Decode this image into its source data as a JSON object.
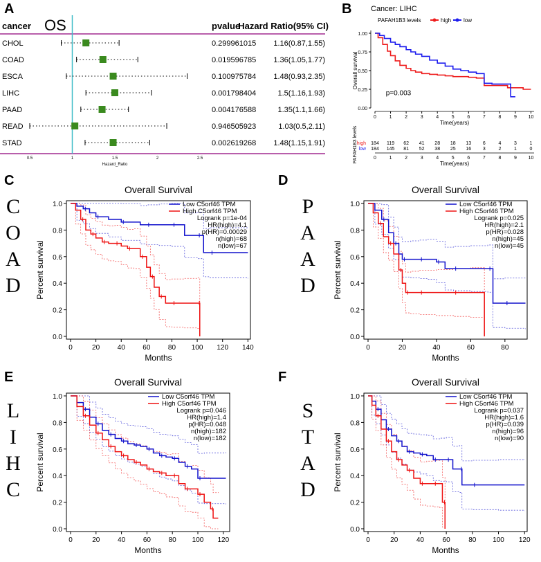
{
  "panel_labels": {
    "a": "A",
    "b": "B",
    "c": "C",
    "d": "D",
    "e": "E",
    "f": "F"
  },
  "chart_data": [
    {
      "type": "forest",
      "panel": "A",
      "title": "OS",
      "columns": {
        "cancer": "cancer",
        "pvalue": "pvalue",
        "hr": "Hazard Ratio(95% CI)"
      },
      "rows": [
        {
          "cancer": "CHOL",
          "pvalue": "0.299961015",
          "hr_text": "1.16(0.87,1.55)",
          "hr": 1.16,
          "low": 0.87,
          "high": 1.55
        },
        {
          "cancer": "COAD",
          "pvalue": "0.019596785",
          "hr_text": "1.36(1.05,1.77)",
          "hr": 1.36,
          "low": 1.05,
          "high": 1.77
        },
        {
          "cancer": "ESCA",
          "pvalue": "0.100975784",
          "hr_text": "1.48(0.93,2.35)",
          "hr": 1.48,
          "low": 0.93,
          "high": 2.35
        },
        {
          "cancer": "LIHC",
          "pvalue": "0.001798404",
          "hr_text": "1.5(1.16,1.93)",
          "hr": 1.5,
          "low": 1.16,
          "high": 1.93
        },
        {
          "cancer": "PAAD",
          "pvalue": "0.004176588",
          "hr_text": "1.35(1.1,1.66)",
          "hr": 1.35,
          "low": 1.1,
          "high": 1.66
        },
        {
          "cancer": "READ",
          "pvalue": "0.946505923",
          "hr_text": "1.03(0.5,2.11)",
          "hr": 1.03,
          "low": 0.5,
          "high": 2.11
        },
        {
          "cancer": "STAD",
          "pvalue": "0.002619268",
          "hr_text": "1.48(1.15,1.91)",
          "hr": 1.48,
          "low": 1.15,
          "high": 1.91
        }
      ],
      "xticks": [
        0.5,
        1,
        1.5,
        2,
        2.5
      ],
      "xtick_labels": [
        "0.5",
        "1",
        "1.5",
        "2",
        "2.5"
      ],
      "xlim": [
        0.5,
        2.5
      ],
      "reference_line": 1,
      "xlabel": "Hazard_Ratio",
      "colors": {
        "box": "#3a8a1e",
        "ref": "#40bcc8",
        "rule": "#a0298f"
      }
    },
    {
      "type": "line",
      "panel": "B",
      "title": "Cancer: LIHC",
      "legend_title": "PAFAH1B3 levels",
      "series": [
        {
          "name": "high",
          "color": "#ee1c1c",
          "x": [
            0,
            0.2,
            0.5,
            0.8,
            1,
            1.3,
            1.6,
            2,
            2.3,
            2.6,
            3,
            3.5,
            4,
            4.5,
            5,
            5.5,
            6,
            6.5,
            7,
            7.5,
            8,
            8.5,
            9,
            9.5,
            10
          ],
          "y": [
            1,
            0.94,
            0.85,
            0.76,
            0.7,
            0.63,
            0.57,
            0.53,
            0.5,
            0.48,
            0.46,
            0.45,
            0.44,
            0.43,
            0.42,
            0.42,
            0.41,
            0.4,
            0.3,
            0.3,
            0.3,
            0.27,
            0.27,
            0.25,
            0.25
          ]
        },
        {
          "name": "low",
          "color": "#1c1cee",
          "x": [
            0,
            0.3,
            0.6,
            1,
            1.3,
            1.6,
            2,
            2.3,
            2.6,
            3,
            3.5,
            4,
            4.5,
            5,
            5.5,
            6,
            6.5,
            7,
            7.5,
            8,
            8.5,
            8.7,
            9
          ],
          "y": [
            1,
            0.97,
            0.93,
            0.88,
            0.85,
            0.82,
            0.78,
            0.75,
            0.72,
            0.69,
            0.64,
            0.6,
            0.56,
            0.52,
            0.5,
            0.48,
            0.46,
            0.33,
            0.32,
            0.32,
            0.32,
            0.15,
            0.15
          ]
        }
      ],
      "xticks": [
        0,
        1,
        2,
        3,
        4,
        5,
        6,
        7,
        8,
        9,
        10
      ],
      "xtick_labels": [
        "0",
        "1",
        "2",
        "3",
        "4",
        "5",
        "6",
        "7",
        "8",
        "9",
        "10"
      ],
      "yticks": [
        0,
        0.25,
        0.5,
        0.75,
        1
      ],
      "ytick_labels": [
        "0.00",
        "0.25",
        "0.50",
        "0.75",
        "1.00"
      ],
      "xlabel": "Time(years)",
      "ylabel": "Overall survival",
      "annotation": "p=0.003",
      "xlim": [
        0,
        10.2
      ],
      "ylim": [
        0,
        1
      ],
      "risk_table": {
        "ylabel": "PAFAH1B3 levels",
        "xlabel": "Time(years)",
        "rows": [
          {
            "name": "high",
            "color": "#ee1c1c",
            "values": [
              "184",
              "119",
              "62",
              "41",
              "28",
              "18",
              "13",
              "6",
              "4",
              "3",
              "1"
            ]
          },
          {
            "name": "low",
            "color": "#1c1cee",
            "values": [
              "184",
              "145",
              "81",
              "52",
              "38",
              "25",
              "16",
              "3",
              "2",
              "1",
              "0"
            ]
          }
        ]
      }
    },
    {
      "type": "line",
      "panel": "C",
      "cancer": "COAD",
      "title": "Overall Survival",
      "xlabel": "Months",
      "ylabel": "Percent survival",
      "xticks": [
        0,
        20,
        40,
        60,
        80,
        100,
        120,
        140
      ],
      "xtick_labels": [
        "0",
        "20",
        "40",
        "60",
        "80",
        "100",
        "120",
        "140"
      ],
      "yticks": [
        0,
        0.2,
        0.4,
        0.6,
        0.8,
        1
      ],
      "ytick_labels": [
        "0.0",
        "0.2",
        "0.4",
        "0.6",
        "0.8",
        "1.0"
      ],
      "xlim": [
        0,
        142
      ],
      "ylim": [
        0,
        1
      ],
      "legend": [
        "Low C5orf46 TPM",
        "High C5orf46 TPM"
      ],
      "stats": [
        "Logrank p=1e-04",
        "HR(high)=4.1",
        "p(HR)=0.00029",
        "n(high)=68",
        "n(low)=67"
      ],
      "series": [
        {
          "name": "Low C5orf46 TPM",
          "color": "#1111cc",
          "x": [
            0,
            5,
            10,
            15,
            20,
            30,
            40,
            55,
            60,
            70,
            80,
            90,
            100,
            105,
            110,
            140
          ],
          "y": [
            1,
            0.98,
            0.96,
            0.93,
            0.9,
            0.88,
            0.86,
            0.84,
            0.84,
            0.84,
            0.84,
            0.76,
            0.76,
            0.63,
            0.63,
            0.63
          ]
        },
        {
          "name": "High C5orf46 TPM",
          "color": "#ee1111",
          "x": [
            0,
            4,
            8,
            12,
            16,
            20,
            25,
            30,
            35,
            40,
            45,
            50,
            55,
            60,
            63,
            66,
            70,
            75,
            80,
            90,
            100,
            102
          ],
          "y": [
            1,
            0.95,
            0.88,
            0.8,
            0.77,
            0.74,
            0.71,
            0.7,
            0.7,
            0.68,
            0.66,
            0.66,
            0.6,
            0.52,
            0.45,
            0.37,
            0.3,
            0.25,
            0.25,
            0.25,
            0.25,
            0
          ]
        }
      ]
    },
    {
      "type": "line",
      "panel": "D",
      "cancer": "PAAD",
      "title": "Overall Survival",
      "xlabel": "Months",
      "ylabel": "Percent survival",
      "xticks": [
        0,
        20,
        40,
        60,
        80
      ],
      "xtick_labels": [
        "0",
        "20",
        "40",
        "60",
        "80"
      ],
      "yticks": [
        0,
        0.2,
        0.4,
        0.6,
        0.8,
        1
      ],
      "ytick_labels": [
        "0.0",
        "0.2",
        "0.4",
        "0.6",
        "0.8",
        "1.0"
      ],
      "xlim": [
        0,
        93
      ],
      "ylim": [
        0,
        1
      ],
      "legend": [
        "Low C5orf46 TPM",
        "High C5orf46 TPM"
      ],
      "stats": [
        "Logrank p=0.025",
        "HR(high)=2.1",
        "p(HR)=0.028",
        "n(high)=45",
        "n(low)=45"
      ],
      "series": [
        {
          "name": "Low C5orf46 TPM",
          "color": "#1111cc",
          "x": [
            0,
            4,
            8,
            12,
            15,
            18,
            20,
            25,
            30,
            35,
            40,
            45,
            50,
            60,
            70,
            73,
            80,
            92
          ],
          "y": [
            1,
            0.95,
            0.88,
            0.78,
            0.7,
            0.62,
            0.58,
            0.58,
            0.58,
            0.58,
            0.56,
            0.51,
            0.51,
            0.51,
            0.51,
            0.25,
            0.25,
            0.25
          ]
        },
        {
          "name": "High C5orf46 TPM",
          "color": "#ee1111",
          "x": [
            0,
            3,
            6,
            9,
            12,
            15,
            18,
            20,
            22,
            25,
            30,
            40,
            50,
            60,
            68
          ],
          "y": [
            1,
            0.93,
            0.85,
            0.75,
            0.7,
            0.62,
            0.5,
            0.4,
            0.33,
            0.33,
            0.33,
            0.33,
            0.33,
            0.33,
            0
          ]
        }
      ]
    },
    {
      "type": "line",
      "panel": "E",
      "cancer": "LIHC",
      "title": "Overall Survival",
      "xlabel": "Months",
      "ylabel": "Percent survival",
      "xticks": [
        0,
        20,
        40,
        60,
        80,
        100,
        120
      ],
      "xtick_labels": [
        "0",
        "20",
        "40",
        "60",
        "80",
        "100",
        "120"
      ],
      "yticks": [
        0,
        0.2,
        0.4,
        0.6,
        0.8,
        1
      ],
      "ytick_labels": [
        "0.0",
        "0.2",
        "0.4",
        "0.6",
        "0.8",
        "1.0"
      ],
      "xlim": [
        0,
        125
      ],
      "ylim": [
        0,
        1
      ],
      "legend": [
        "Low C5orf46 TPM",
        "High C5orf46 TPM"
      ],
      "stats": [
        "Logrank p=0.046",
        "HR(high)=1.4",
        "p(HR)=0.048",
        "n(high)=182",
        "n(low)=182"
      ],
      "series": [
        {
          "name": "Low C5orf46 TPM",
          "color": "#1111cc",
          "x": [
            0,
            5,
            10,
            15,
            20,
            25,
            30,
            35,
            40,
            45,
            50,
            55,
            60,
            65,
            70,
            75,
            80,
            85,
            90,
            95,
            100,
            105,
            122
          ],
          "y": [
            1,
            0.95,
            0.9,
            0.84,
            0.79,
            0.74,
            0.71,
            0.68,
            0.66,
            0.64,
            0.63,
            0.62,
            0.6,
            0.57,
            0.55,
            0.54,
            0.53,
            0.5,
            0.47,
            0.45,
            0.38,
            0.38,
            0.38
          ]
        },
        {
          "name": "High C5orf46 TPM",
          "color": "#ee1111",
          "x": [
            0,
            5,
            10,
            15,
            20,
            25,
            30,
            35,
            40,
            45,
            50,
            55,
            60,
            65,
            70,
            75,
            80,
            85,
            90,
            95,
            100,
            105,
            110,
            112,
            116
          ],
          "y": [
            1,
            0.92,
            0.85,
            0.78,
            0.72,
            0.67,
            0.62,
            0.58,
            0.55,
            0.52,
            0.5,
            0.48,
            0.45,
            0.43,
            0.42,
            0.4,
            0.4,
            0.34,
            0.3,
            0.3,
            0.26,
            0.2,
            0.15,
            0.08,
            0.08
          ]
        }
      ]
    },
    {
      "type": "line",
      "panel": "F",
      "cancer": "STAD",
      "title": "Overall Survival",
      "xlabel": "Months",
      "ylabel": "Percent survival",
      "xticks": [
        0,
        20,
        40,
        60,
        80,
        100,
        120
      ],
      "xtick_labels": [
        "0",
        "20",
        "40",
        "60",
        "80",
        "100",
        "120"
      ],
      "yticks": [
        0,
        0.2,
        0.4,
        0.6,
        0.8,
        1
      ],
      "ytick_labels": [
        "0.0",
        "0.2",
        "0.4",
        "0.6",
        "0.8",
        "1.0"
      ],
      "xlim": [
        0,
        122
      ],
      "ylim": [
        0,
        1
      ],
      "legend": [
        "Low C5orf46 TPM",
        "High C5orf46 TPM"
      ],
      "stats": [
        "Logrank p=0.037",
        "HR(high)=1.6",
        "p(HR)=0.039",
        "n(high)=96",
        "n(low)=90"
      ],
      "series": [
        {
          "name": "Low C5orf46 TPM",
          "color": "#1111cc",
          "x": [
            0,
            3,
            6,
            10,
            14,
            18,
            22,
            26,
            30,
            35,
            40,
            45,
            50,
            55,
            60,
            65,
            70,
            72,
            80,
            100,
            120
          ],
          "y": [
            1,
            0.96,
            0.9,
            0.82,
            0.75,
            0.7,
            0.66,
            0.62,
            0.58,
            0.57,
            0.56,
            0.55,
            0.52,
            0.52,
            0.52,
            0.45,
            0.45,
            0.33,
            0.33,
            0.33,
            0.33
          ]
        },
        {
          "name": "High C5orf46 TPM",
          "color": "#ee1111",
          "x": [
            0,
            3,
            6,
            10,
            14,
            18,
            22,
            26,
            30,
            35,
            40,
            45,
            50,
            55,
            57,
            59
          ],
          "y": [
            1,
            0.93,
            0.85,
            0.75,
            0.66,
            0.58,
            0.52,
            0.48,
            0.44,
            0.38,
            0.34,
            0.34,
            0.34,
            0.34,
            0.2,
            0
          ]
        }
      ]
    }
  ]
}
